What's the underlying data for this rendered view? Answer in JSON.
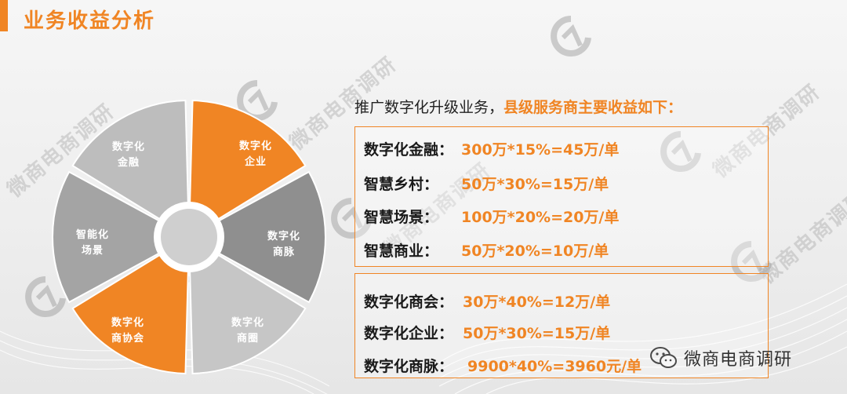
{
  "page": {
    "title": "业务收益分析",
    "watermark": "微商电商调研",
    "wechat_name": "微商电商调研",
    "colors": {
      "accent": "#f08524",
      "gray_dark": "#8f8f8f",
      "gray_mid": "#a4a4a4",
      "gray_light": "#bdbdbd"
    }
  },
  "diagram": {
    "segments": [
      {
        "line1": "数字化",
        "line2": "企业",
        "color": "#f08524"
      },
      {
        "line1": "数字化",
        "line2": "商脉",
        "color": "#8f8f8f"
      },
      {
        "line1": "数字化",
        "line2": "商圈",
        "color": "#c6c6c6"
      },
      {
        "line1": "数字化",
        "line2": "商协会",
        "color": "#f08524"
      },
      {
        "line1": "智能化",
        "line2": "场景",
        "color": "#a4a4a4"
      },
      {
        "line1": "数字化",
        "line2": "金融",
        "color": "#bdbdbd"
      }
    ]
  },
  "content": {
    "intro_plain": "推广数字化升级业务，",
    "intro_highlight": "县级服务商主要收益如下：",
    "group1": [
      {
        "label": "数字化金融：",
        "value": "300万*15%=45万/单"
      },
      {
        "label": "智慧乡村：",
        "value": "50万*30%=15万/单"
      },
      {
        "label": "智慧场景：",
        "value": "100万*20%=20万/单"
      },
      {
        "label": "智慧商业：",
        "value": "50万*20%=10万/单"
      }
    ],
    "group2": [
      {
        "label": "数字化商会：",
        "value": "30万*40%=12万/单"
      },
      {
        "label": "数字化企业：",
        "value": "50万*30%=15万/单"
      },
      {
        "label": "数字化商脉：",
        "value": "9900*40%=3960元/单"
      }
    ]
  }
}
